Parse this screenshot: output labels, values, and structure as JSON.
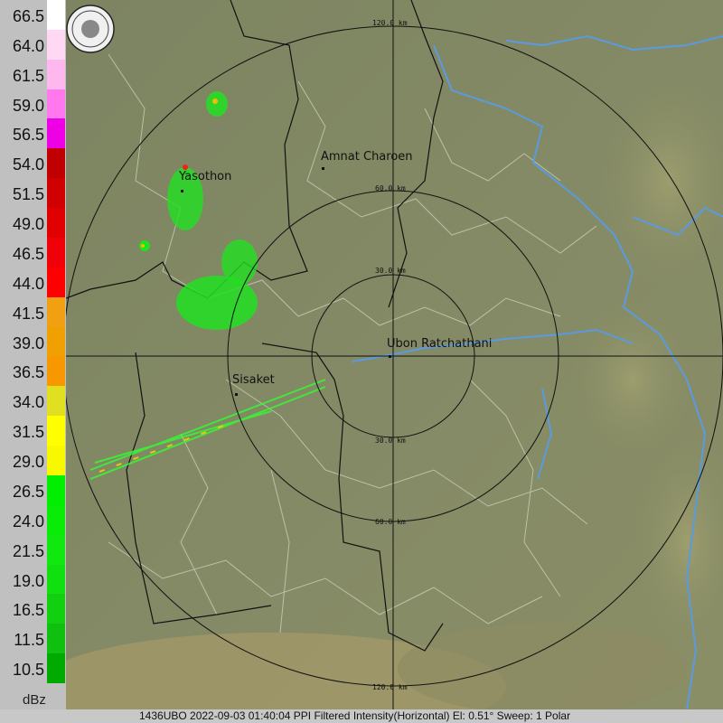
{
  "legend": {
    "unit": "dBz",
    "levels": [
      {
        "label": "66.5",
        "color": "#ffffff"
      },
      {
        "label": "64.0",
        "color": "#ffd8f4"
      },
      {
        "label": "61.5",
        "color": "#ffb8ee"
      },
      {
        "label": "59.0",
        "color": "#ff78ee"
      },
      {
        "label": "56.5",
        "color": "#ee00e6"
      },
      {
        "label": "54.0",
        "color": "#c00000"
      },
      {
        "label": "51.5",
        "color": "#d00000"
      },
      {
        "label": "49.0",
        "color": "#e00000"
      },
      {
        "label": "46.5",
        "color": "#f00008"
      },
      {
        "label": "44.0",
        "color": "#ff0000"
      },
      {
        "label": "41.5",
        "color": "#f0a010"
      },
      {
        "label": "39.0",
        "color": "#f0a000"
      },
      {
        "label": "36.5",
        "color": "#f89800"
      },
      {
        "label": "34.0",
        "color": "#e0e020"
      },
      {
        "label": "31.5",
        "color": "#ffff00"
      },
      {
        "label": "29.0",
        "color": "#f8f800"
      },
      {
        "label": "26.5",
        "color": "#00ee00"
      },
      {
        "label": "24.0",
        "color": "#08ec08"
      },
      {
        "label": "21.5",
        "color": "#10e810"
      },
      {
        "label": "19.0",
        "color": "#10e010"
      },
      {
        "label": "16.5",
        "color": "#10d010"
      },
      {
        "label": "11.5",
        "color": "#10c010"
      },
      {
        "label": "10.5",
        "color": "#00aa00"
      }
    ]
  },
  "map": {
    "cities": [
      {
        "name": "Amnat Charoen"
      },
      {
        "name": "Yasothon"
      },
      {
        "name": "Ubon Ratchathani"
      },
      {
        "name": "Sisaket"
      }
    ],
    "range_rings": [
      "30.0 km",
      "60.0 km",
      "120.0 km"
    ],
    "logo_icon": "agency-seal-icon"
  },
  "caption": "1436UBO 2022-09-03 01:40:04 PPI Filtered Intensity(Horizontal)  El: 0.51°  Sweep: 1 Polar"
}
